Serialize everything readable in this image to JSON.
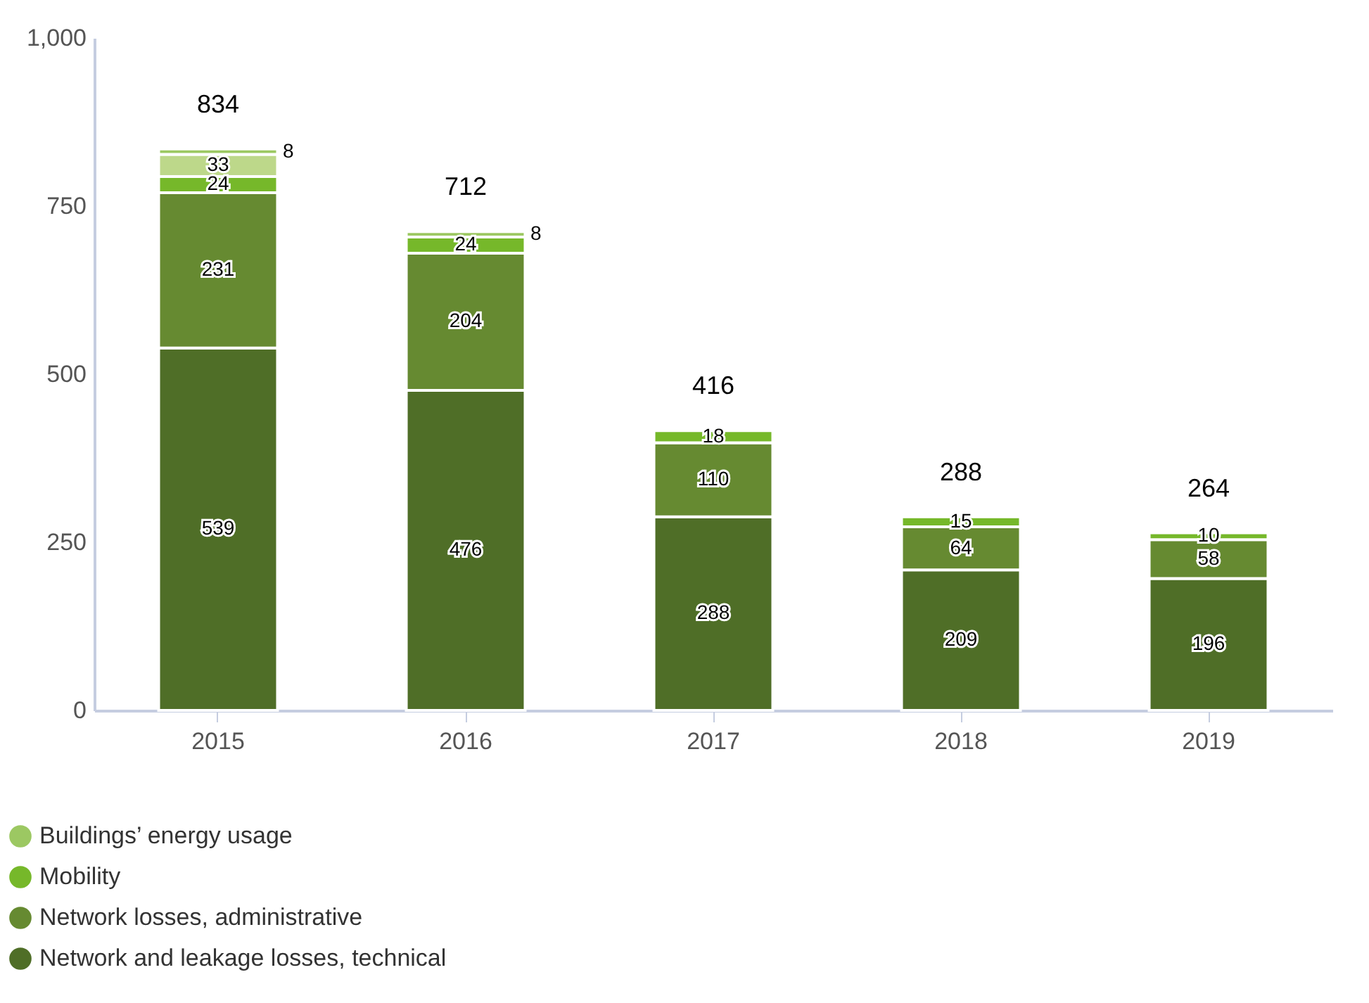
{
  "chart_data": {
    "type": "bar",
    "stacked": true,
    "categories": [
      "2015",
      "2016",
      "2017",
      "2018",
      "2019"
    ],
    "series": [
      {
        "name": "Network and leakage losses, technical",
        "color": "#4f6e27",
        "values": [
          539,
          476,
          288,
          209,
          196
        ]
      },
      {
        "name": "Network losses, administrative",
        "color": "#668a31",
        "values": [
          231,
          204,
          110,
          64,
          58
        ]
      },
      {
        "name": "Mobility",
        "color": "#76b82a",
        "values": [
          24,
          24,
          18,
          15,
          10
        ]
      },
      {
        "color": "#bdd88a",
        "values": [
          33,
          null,
          null,
          null,
          null
        ]
      },
      {
        "name": "Buildings’ energy usage",
        "color": "#9cc862",
        "values": [
          8,
          8,
          null,
          null,
          null
        ]
      }
    ],
    "ylim": [
      0,
      1000
    ],
    "yticks": [
      0,
      250,
      500,
      750,
      {
        "value": 1000,
        "label": "1,000"
      }
    ],
    "grid": false,
    "legend": "bottom left",
    "data_labels": true,
    "totals": [
      "834",
      "712",
      "416",
      "288",
      "264"
    ]
  }
}
